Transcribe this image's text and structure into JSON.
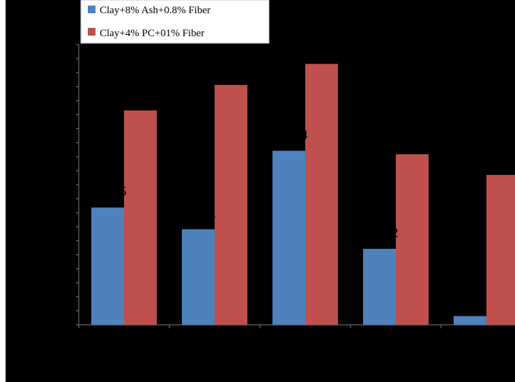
{
  "chart_data": {
    "type": "bar",
    "categories": [
      "",
      "",
      "",
      "",
      ""
    ],
    "series": [
      {
        "name": "Clay+8% Ash+0.8% Fiber",
        "color": "#4f81bd",
        "values": [
          33.5,
          27.3,
          49.7,
          21.7,
          2.5
        ],
        "data_labels": [
          "5",
          "1",
          "4",
          "2",
          ""
        ]
      },
      {
        "name": "Clay+4% PC+01% Fiber",
        "color": "#c0504d",
        "values": [
          61.2,
          68.5,
          74.5,
          48.7,
          42.8
        ],
        "data_labels": [
          "",
          "",
          "",
          "",
          ""
        ]
      }
    ],
    "ylim": [
      0,
      80
    ],
    "grid": false,
    "legend_position": "top-left",
    "background_color": "#000000",
    "axis_color": "#808080"
  }
}
